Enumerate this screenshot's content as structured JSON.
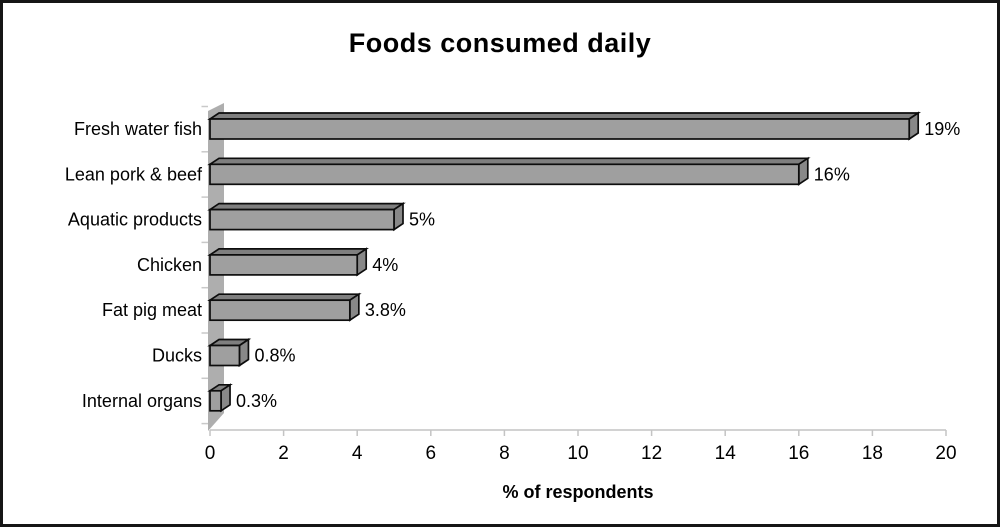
{
  "chart_data": {
    "type": "bar",
    "orientation": "horizontal",
    "style": "3d-excel",
    "title": "Foods consumed daily",
    "xlabel": "% of respondents",
    "ylabel": "",
    "categories": [
      "Fresh water fish",
      "Lean pork & beef",
      "Aquatic products",
      "Chicken",
      "Fat pig meat",
      "Ducks",
      "Internal organs"
    ],
    "values": [
      19,
      16,
      5,
      4,
      3.8,
      0.8,
      0.3
    ],
    "value_labels": [
      "19%",
      "16%",
      "5%",
      "4%",
      "3.8%",
      "0.8%",
      "0.3%"
    ],
    "x_ticks": [
      0,
      2,
      4,
      6,
      8,
      10,
      12,
      14,
      16,
      18,
      20
    ],
    "xlim": [
      0,
      20
    ],
    "grid": false,
    "legend": false,
    "colors": {
      "bar_front": "#9f9f9f",
      "bar_top": "#7f7f7f",
      "bar_side": "#888888",
      "bar_outline": "#0d0d0d",
      "wall": "#aeaeae",
      "wall_tick": "#c9c9c9",
      "axis_line": "#c4c4c4",
      "text": "#000000",
      "background": "#ffffff",
      "frame_border": "#161616"
    }
  }
}
